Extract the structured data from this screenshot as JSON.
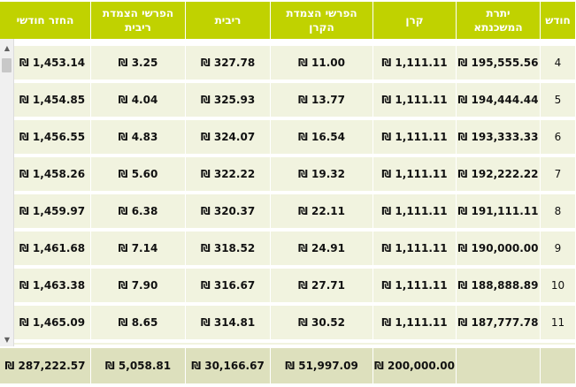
{
  "columns": [
    {
      "key": "month",
      "label": "חודש"
    },
    {
      "key": "balance",
      "label": "יתרת המשכנתא"
    },
    {
      "key": "principal",
      "label": "קרן"
    },
    {
      "key": "principal_indexation",
      "label": "הפרשי הצמדת הקרן"
    },
    {
      "key": "interest",
      "label": "ריבית"
    },
    {
      "key": "interest_indexation",
      "label": "הפרשי הצמדת ריבית"
    },
    {
      "key": "monthly_payment",
      "label": "החזר חודשי"
    }
  ],
  "rows": [
    {
      "month": "4",
      "balance": "195,555.56",
      "principal": "1,111.11",
      "principal_indexation": "₪ 11.00",
      "interest": "₪ 327.78",
      "interest_indexation": "₪ 3.25",
      "monthly_payment": "₪ 1,453.14"
    },
    {
      "month": "5",
      "balance": "194,444.44",
      "principal": "1,111.11",
      "principal_indexation": "₪ 13.77",
      "interest": "₪ 325.93",
      "interest_indexation": "₪ 4.04",
      "monthly_payment": "₪ 1,454.85"
    },
    {
      "month": "6",
      "balance": "193,333.33",
      "principal": "1,111.11",
      "principal_indexation": "₪ 16.54",
      "interest": "₪ 324.07",
      "interest_indexation": "₪ 4.83",
      "monthly_payment": "₪ 1,456.55"
    },
    {
      "month": "7",
      "balance": "192,222.22",
      "principal": "1,111.11",
      "principal_indexation": "₪ 19.32",
      "interest": "₪ 322.22",
      "interest_indexation": "₪ 5.60",
      "monthly_payment": "₪ 1,458.26"
    },
    {
      "month": "8",
      "balance": "191,111.11",
      "principal": "1,111.11",
      "principal_indexation": "₪ 22.11",
      "interest": "₪ 320.37",
      "interest_indexation": "₪ 6.38",
      "monthly_payment": "₪ 1,459.97"
    },
    {
      "month": "9",
      "balance": "190,000.00",
      "principal": "1,111.11",
      "principal_indexation": "₪ 24.91",
      "interest": "₪ 318.52",
      "interest_indexation": "₪ 7.14",
      "monthly_payment": "₪ 1,461.68"
    },
    {
      "month": "10",
      "balance": "188,888.89",
      "principal": "1,111.11",
      "principal_indexation": "₪ 27.71",
      "interest": "₪ 316.67",
      "interest_indexation": "₪ 7.90",
      "monthly_payment": "₪ 1,463.38"
    },
    {
      "month": "11",
      "balance": "187,777.78",
      "principal": "1,111.11",
      "principal_indexation": "₪ 30.52",
      "interest": "₪ 314.81",
      "interest_indexation": "₪ 8.65",
      "monthly_payment": "₪ 1,465.09"
    }
  ],
  "currency": "₪",
  "totals": {
    "month": "",
    "balance": "",
    "principal": "₪ 200,000.00",
    "principal_indexation": "₪ 51,997.09",
    "interest": "₪ 30,166.67",
    "interest_indexation": "₪ 5,058.81",
    "monthly_payment": "₪ 287,222.57"
  },
  "colors": {
    "header": "#c0d200",
    "row": "#f1f3df",
    "footer": "#dde0bd"
  },
  "icons": {
    "scroll_up": "▲",
    "scroll_down": "▼"
  }
}
